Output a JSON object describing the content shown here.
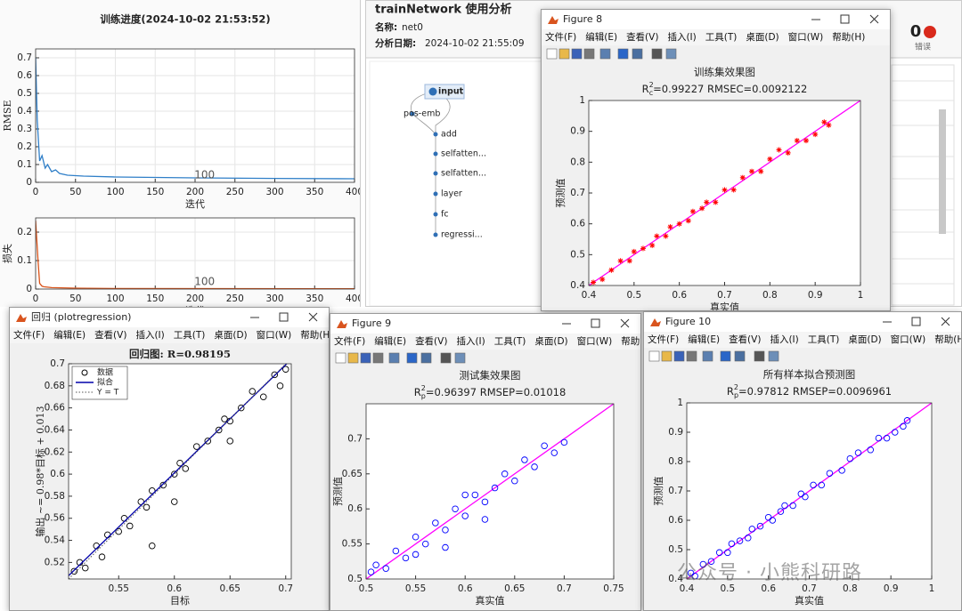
{
  "training_progress": {
    "title": "训练进度(2024-10-02 21:53:52)",
    "charts": [
      {
        "type": "line",
        "xlabel": "迭代",
        "ylabel": "RMSE",
        "annotation": "100",
        "grid": true,
        "xlim": [
          0,
          400
        ],
        "ylim": [
          0,
          0.75
        ],
        "xticks": [
          0,
          50,
          100,
          150,
          200,
          250,
          300,
          350,
          400
        ],
        "yticks": [
          0,
          0.1,
          0.2,
          0.3,
          0.4,
          0.5,
          0.6,
          0.7
        ],
        "series": [
          {
            "kind": "line",
            "color": "#2f7fc8",
            "x": [
              0,
              2,
              5,
              8,
              12,
              15,
              20,
              25,
              30,
              40,
              60,
              100,
              200,
              300,
              400
            ],
            "values": [
              0.7,
              0.35,
              0.12,
              0.15,
              0.08,
              0.1,
              0.06,
              0.07,
              0.05,
              0.04,
              0.035,
              0.03,
              0.025,
              0.022,
              0.02
            ]
          }
        ]
      },
      {
        "type": "line",
        "xlabel": "迭代",
        "ylabel": "损失",
        "annotation": "100",
        "grid": true,
        "xlim": [
          0,
          400
        ],
        "ylim": [
          0,
          0.25
        ],
        "xticks": [
          0,
          50,
          100,
          150,
          200,
          250,
          300,
          350,
          400
        ],
        "yticks": [
          0,
          0.1,
          0.2
        ],
        "series": [
          {
            "kind": "line",
            "color": "#d95319",
            "x": [
              0,
              3,
              5,
              8,
              10,
              20,
              50,
              100,
              400
            ],
            "values": [
              0.24,
              0.1,
              0.02,
              0.01,
              0.008,
              0.005,
              0.003,
              0.002,
              0.001
            ]
          }
        ]
      }
    ]
  },
  "analysis": {
    "title": "trainNetwork 使用分析",
    "name_label": "名称:",
    "name": "net0",
    "date_label": "分析日期:",
    "date": "2024-10-02 21:55:09",
    "errors": {
      "count": 0,
      "label": "错误"
    },
    "nodes": [
      "input",
      "pos-emb",
      "add",
      "selfatten...",
      "selfatten...",
      "layer",
      "fc",
      "regressi..."
    ]
  },
  "figure8": {
    "window_title": "Figure 8",
    "menu": [
      "文件(F)",
      "编辑(E)",
      "查看(V)",
      "插入(I)",
      "工具(T)",
      "桌面(D)",
      "窗口(W)",
      "帮助(H)"
    ],
    "chart": {
      "type": "scatter",
      "title": "训练集效果图",
      "stat": {
        "symbol": "R",
        "sup": "2",
        "sub": "c",
        "text": "=0.99227  RMSEC=0.0092122"
      },
      "xlabel": "真实值",
      "ylabel": "预测值",
      "xlim": [
        0.4,
        1
      ],
      "ylim": [
        0.4,
        1
      ],
      "xticks": [
        0.4,
        0.5,
        0.6,
        0.7,
        0.8,
        0.9,
        1
      ],
      "yticks": [
        0.4,
        0.5,
        0.6,
        0.7,
        0.8,
        0.9,
        1
      ],
      "series": [
        {
          "kind": "line",
          "color": "#ff00ff",
          "x": [
            0.4,
            1
          ],
          "values": [
            0.4,
            1
          ]
        },
        {
          "kind": "marker",
          "marker": "star",
          "color": "#ff0000",
          "x": [
            0.41,
            0.43,
            0.45,
            0.47,
            0.49,
            0.5,
            0.52,
            0.54,
            0.55,
            0.57,
            0.58,
            0.6,
            0.62,
            0.63,
            0.65,
            0.66,
            0.68,
            0.7,
            0.72,
            0.74,
            0.76,
            0.78,
            0.8,
            0.82,
            0.84,
            0.86,
            0.88,
            0.9,
            0.92,
            0.93
          ],
          "values": [
            0.41,
            0.42,
            0.45,
            0.48,
            0.48,
            0.51,
            0.52,
            0.53,
            0.56,
            0.56,
            0.59,
            0.6,
            0.61,
            0.64,
            0.65,
            0.67,
            0.67,
            0.71,
            0.71,
            0.75,
            0.77,
            0.77,
            0.81,
            0.84,
            0.83,
            0.87,
            0.87,
            0.89,
            0.93,
            0.92
          ]
        }
      ]
    }
  },
  "regression": {
    "window_title": "回归 (plotregression)",
    "menu": [
      "文件(F)",
      "编辑(E)",
      "查看(V)",
      "插入(I)",
      "工具(T)",
      "桌面(D)",
      "窗口(W)",
      "帮助(H)"
    ],
    "chart": {
      "type": "scatter",
      "title": "回归图: R=0.98195",
      "legend": true,
      "xlabel": "目标",
      "ylabel": "输出 ~= 0.98*目标 + 0.013",
      "xlim": [
        0.505,
        0.705
      ],
      "ylim": [
        0.505,
        0.7
      ],
      "xticks": [
        0.55,
        0.6,
        0.65,
        0.7
      ],
      "yticks": [
        0.52,
        0.54,
        0.56,
        0.58,
        0.6,
        0.62,
        0.64,
        0.66,
        0.68,
        0.7
      ],
      "series": [
        {
          "name": "数据",
          "kind": "marker",
          "marker": "circle",
          "color": "#000000",
          "x": [
            0.51,
            0.515,
            0.52,
            0.53,
            0.535,
            0.54,
            0.55,
            0.555,
            0.56,
            0.57,
            0.575,
            0.58,
            0.59,
            0.6,
            0.605,
            0.61,
            0.62,
            0.63,
            0.64,
            0.645,
            0.65,
            0.66,
            0.67,
            0.68,
            0.69,
            0.695,
            0.7,
            0.58,
            0.6,
            0.65
          ],
          "values": [
            0.512,
            0.52,
            0.515,
            0.535,
            0.525,
            0.545,
            0.548,
            0.56,
            0.553,
            0.575,
            0.57,
            0.585,
            0.59,
            0.6,
            0.61,
            0.605,
            0.625,
            0.63,
            0.64,
            0.65,
            0.648,
            0.66,
            0.675,
            0.67,
            0.69,
            0.68,
            0.695,
            0.535,
            0.575,
            0.63
          ]
        },
        {
          "name": "拟合",
          "kind": "line",
          "color": "#0000aa",
          "x": [
            0.505,
            0.705
          ],
          "values": [
            0.508,
            0.704
          ]
        },
        {
          "name": "Y = T",
          "kind": "line",
          "dash": true,
          "color": "#555555",
          "x": [
            0.505,
            0.7
          ],
          "values": [
            0.505,
            0.7
          ]
        }
      ]
    }
  },
  "figure9": {
    "window_title": "Figure 9",
    "menu": [
      "文件(F)",
      "编辑(E)",
      "查看(V)",
      "插入(I)",
      "工具(T)",
      "桌面(D)",
      "窗口(W)",
      "帮助(H)"
    ],
    "chart": {
      "type": "scatter",
      "title": "测试集效果图",
      "stat": {
        "symbol": "R",
        "sup": "2",
        "sub": "p",
        "text": "=0.96397  RMSEP=0.01018"
      },
      "xlabel": "真实值",
      "ylabel": "预测值",
      "xlim": [
        0.5,
        0.75
      ],
      "ylim": [
        0.5,
        0.75
      ],
      "xticks": [
        0.5,
        0.55,
        0.6,
        0.65,
        0.7,
        0.75
      ],
      "yticks": [
        0.5,
        0.55,
        0.6,
        0.65,
        0.7
      ],
      "series": [
        {
          "kind": "line",
          "color": "#ff00ff",
          "x": [
            0.5,
            0.75
          ],
          "values": [
            0.5,
            0.75
          ]
        },
        {
          "kind": "marker",
          "marker": "circle",
          "color": "#0000ff",
          "x": [
            0.505,
            0.51,
            0.52,
            0.53,
            0.54,
            0.55,
            0.56,
            0.57,
            0.58,
            0.59,
            0.6,
            0.61,
            0.62,
            0.63,
            0.64,
            0.65,
            0.66,
            0.67,
            0.68,
            0.69,
            0.7,
            0.58,
            0.6,
            0.62,
            0.55
          ],
          "values": [
            0.51,
            0.52,
            0.515,
            0.54,
            0.53,
            0.56,
            0.55,
            0.58,
            0.57,
            0.6,
            0.59,
            0.62,
            0.61,
            0.63,
            0.65,
            0.64,
            0.67,
            0.66,
            0.69,
            0.68,
            0.695,
            0.545,
            0.62,
            0.585,
            0.535
          ]
        }
      ]
    }
  },
  "figure10": {
    "window_title": "Figure 10",
    "menu": [
      "文件(F)",
      "编辑(E)",
      "查看(V)",
      "插入(I)",
      "工具(T)",
      "桌面(D)",
      "窗口(W)",
      "帮助(H)"
    ],
    "chart": {
      "type": "scatter",
      "title": "所有样本拟合预测图",
      "stat": {
        "symbol": "R",
        "sup": "2",
        "sub": "p",
        "text": "=0.97812  RMSEP=0.0096961"
      },
      "xlabel": "真实值",
      "ylabel": "预测值",
      "xlim": [
        0.4,
        1
      ],
      "ylim": [
        0.4,
        1
      ],
      "xticks": [
        0.4,
        0.5,
        0.6,
        0.7,
        0.8,
        0.9,
        1
      ],
      "yticks": [
        0.4,
        0.5,
        0.6,
        0.7,
        0.8,
        0.9,
        1
      ],
      "series": [
        {
          "kind": "line",
          "color": "#ff00ff",
          "x": [
            0.4,
            1
          ],
          "values": [
            0.4,
            1
          ]
        },
        {
          "kind": "marker",
          "marker": "circle",
          "color": "#0000ff",
          "x": [
            0.41,
            0.42,
            0.44,
            0.46,
            0.48,
            0.5,
            0.51,
            0.53,
            0.55,
            0.56,
            0.58,
            0.6,
            0.61,
            0.63,
            0.64,
            0.66,
            0.68,
            0.69,
            0.71,
            0.73,
            0.75,
            0.78,
            0.8,
            0.82,
            0.85,
            0.87,
            0.89,
            0.91,
            0.93,
            0.94
          ],
          "values": [
            0.42,
            0.41,
            0.45,
            0.46,
            0.49,
            0.49,
            0.52,
            0.53,
            0.54,
            0.57,
            0.58,
            0.61,
            0.6,
            0.63,
            0.65,
            0.65,
            0.69,
            0.68,
            0.72,
            0.72,
            0.76,
            0.77,
            0.81,
            0.83,
            0.84,
            0.88,
            0.88,
            0.9,
            0.92,
            0.94
          ]
        }
      ]
    }
  },
  "watermark": "公众号 · 小熊科研路"
}
